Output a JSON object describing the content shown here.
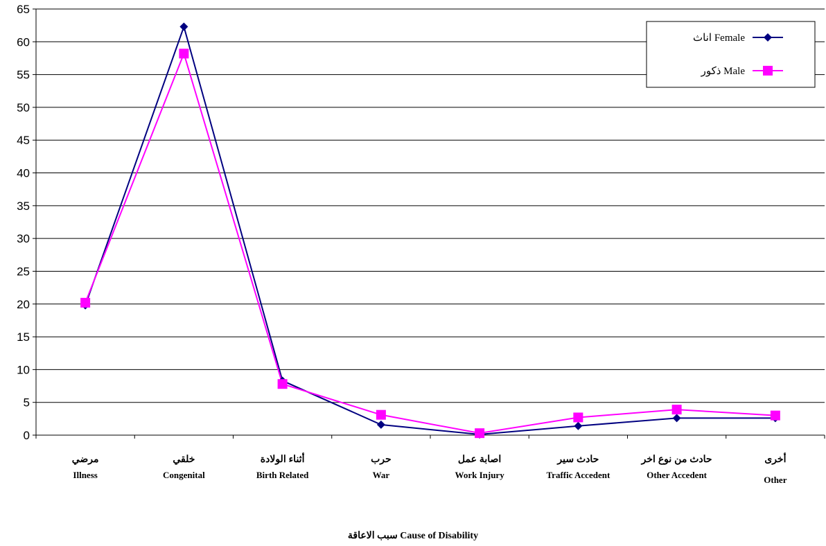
{
  "chart_data": {
    "type": "line",
    "xlabel": "سبب الاعاقة   Cause of Disability",
    "ylim": [
      0,
      65
    ],
    "yticks": [
      0,
      5,
      10,
      15,
      20,
      25,
      30,
      35,
      40,
      45,
      50,
      55,
      60,
      65
    ],
    "grid": true,
    "legend_position": "top-right",
    "categories": [
      {
        "ar": "مرضي",
        "en": "Illness"
      },
      {
        "ar": "خلقي",
        "en": "Congenital"
      },
      {
        "ar": "أثناء الولادة",
        "en": "Birth Related"
      },
      {
        "ar": "حرب",
        "en": "War"
      },
      {
        "ar": "اصابة عمل",
        "en": "Work Injury"
      },
      {
        "ar": "حادث سير",
        "en": "Traffic Accedent"
      },
      {
        "ar": "حادث من نوع اخر",
        "en": "Other Accedent"
      },
      {
        "ar": "أخرى",
        "en": "Other"
      }
    ],
    "series": [
      {
        "name": "اناث Female",
        "color": "#000080",
        "marker": "diamond",
        "values": [
          19.8,
          62.3,
          8.3,
          1.6,
          0.1,
          1.4,
          2.6,
          2.6
        ]
      },
      {
        "name": "ذكور Male",
        "color": "#FF00FF",
        "marker": "square",
        "values": [
          20.2,
          58.2,
          7.8,
          3.1,
          0.3,
          2.7,
          3.9,
          3.0
        ]
      }
    ]
  }
}
